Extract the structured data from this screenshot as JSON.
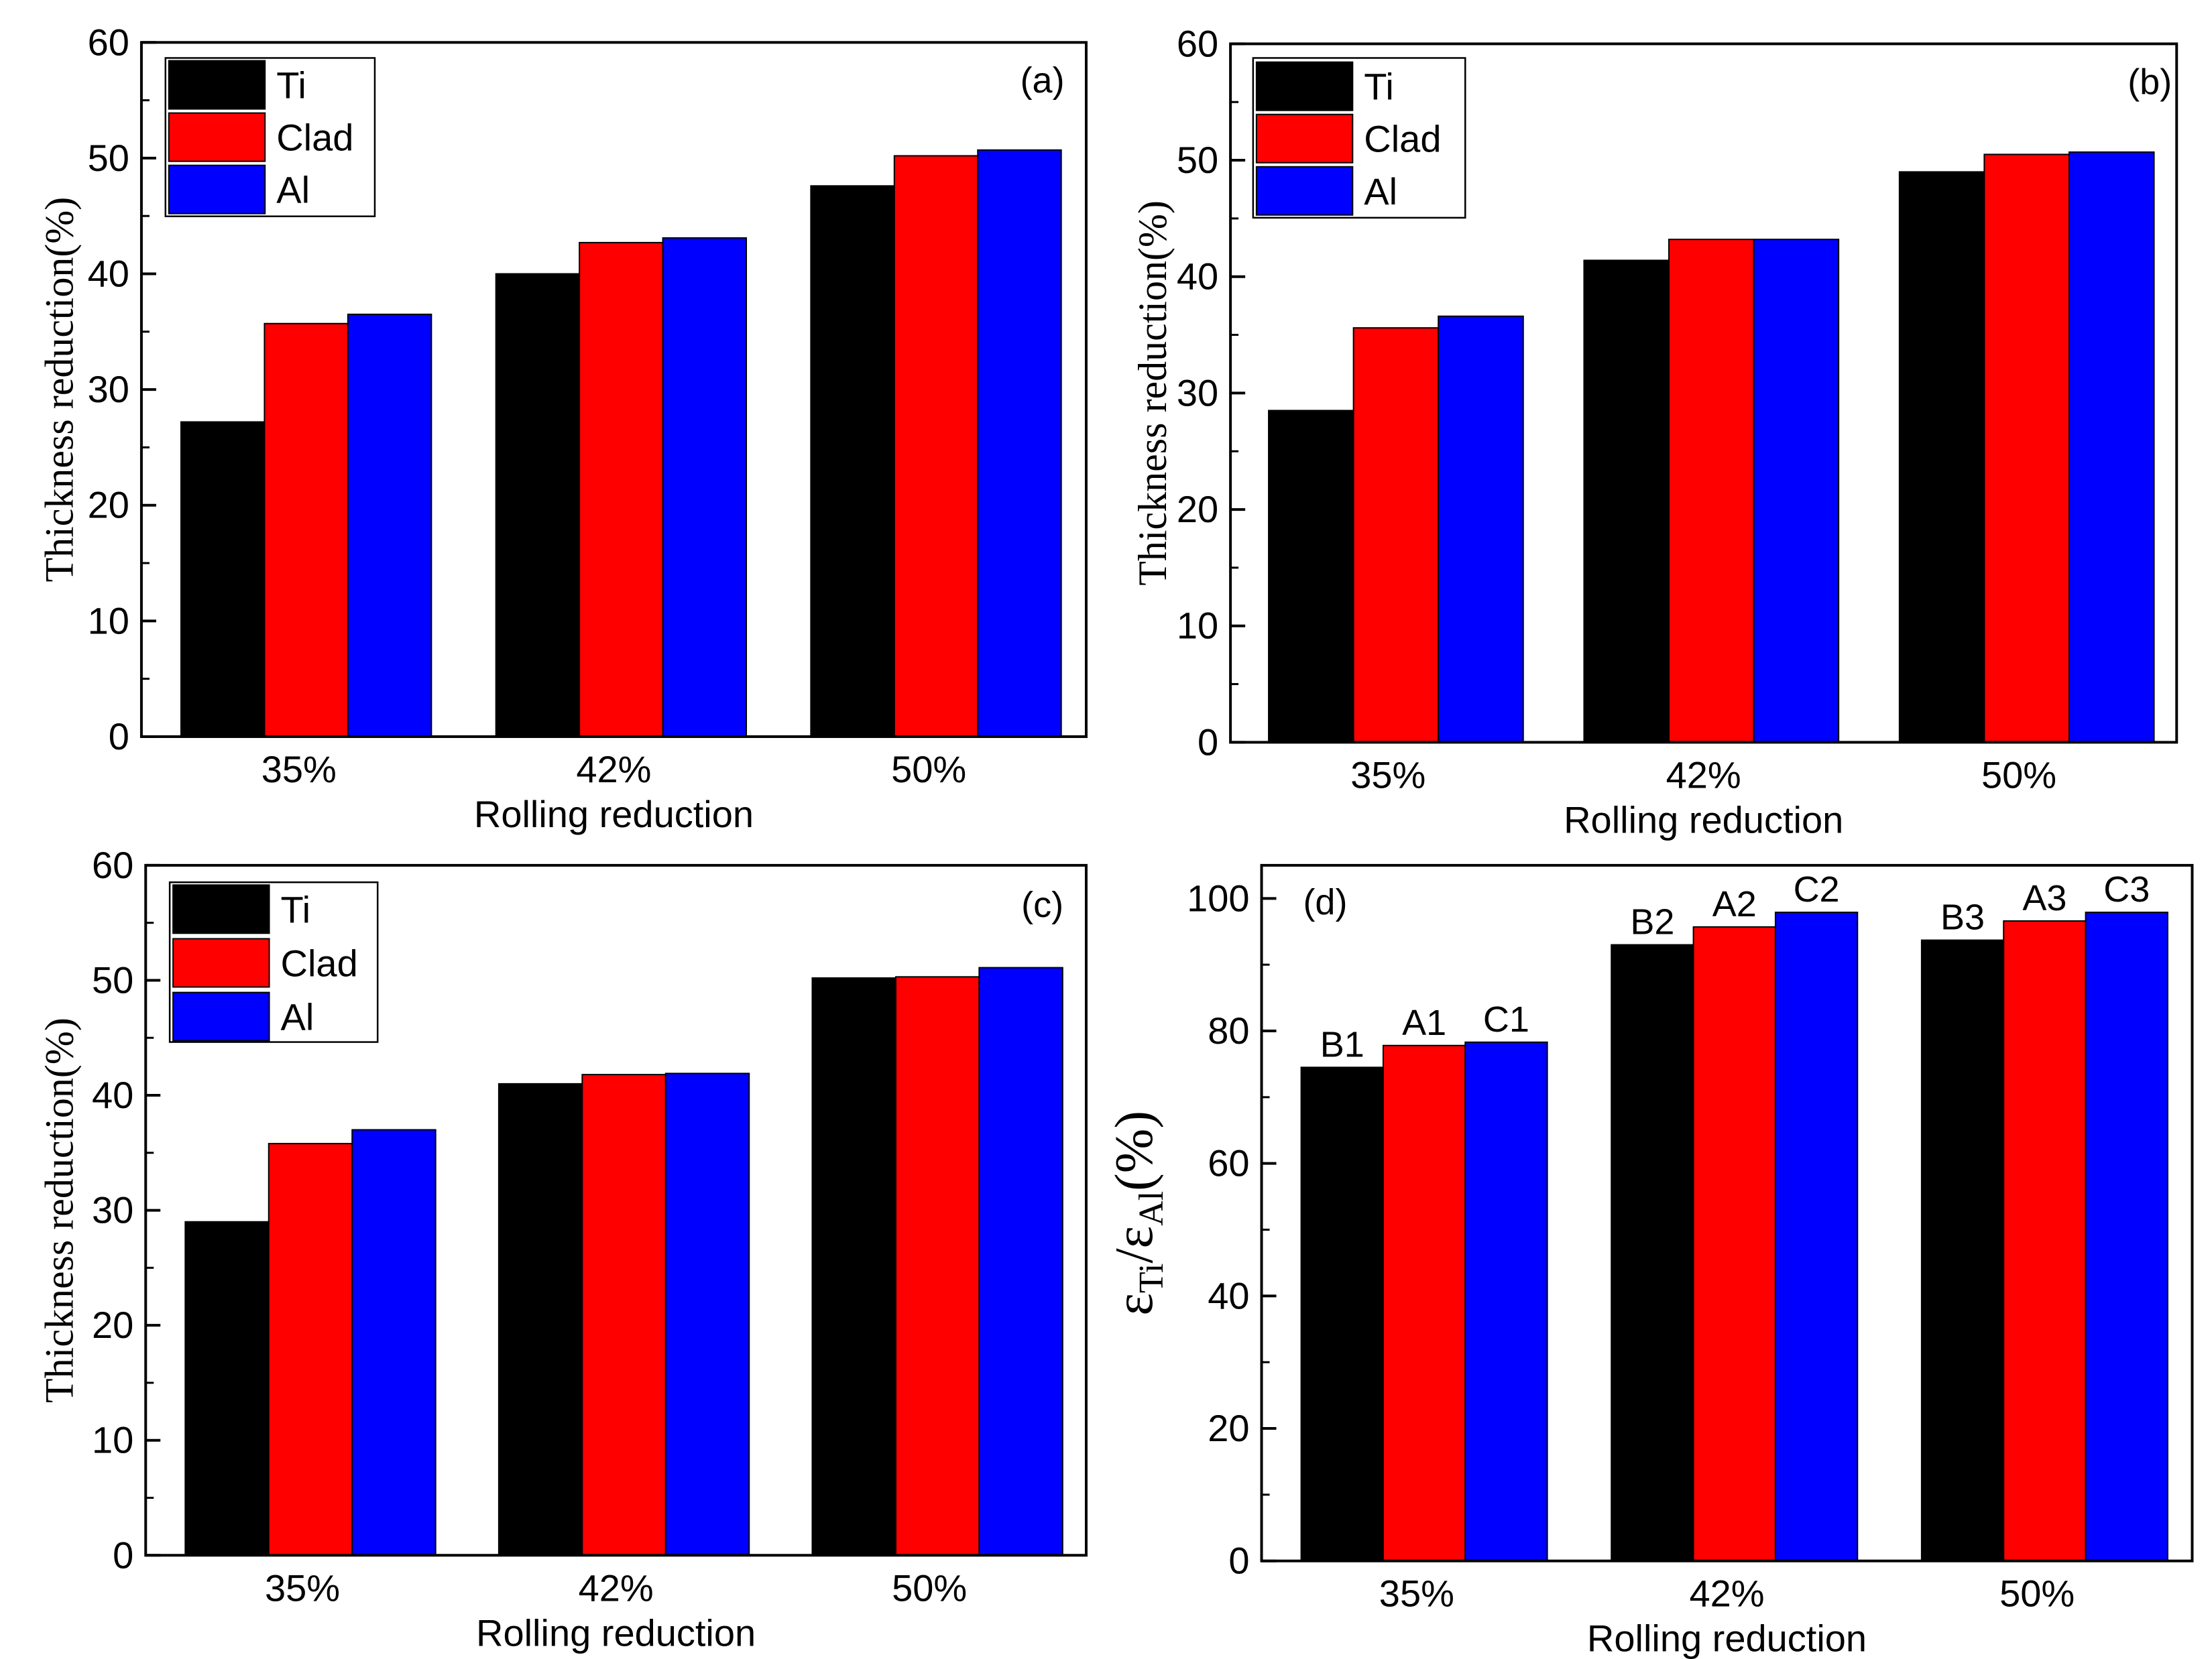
{
  "colors": {
    "ti": "#000000",
    "clad": "#ff0000",
    "al": "#0000ff",
    "axis": "#000000"
  },
  "chart_data": [
    {
      "type": "bar",
      "panel": "(a)",
      "categories": [
        "35%",
        "42%",
        "50%"
      ],
      "series": [
        {
          "name": "Ti",
          "values": [
            27.2,
            40.0,
            47.6
          ]
        },
        {
          "name": "Clad",
          "values": [
            35.7,
            42.7,
            50.2
          ]
        },
        {
          "name": "Al",
          "values": [
            36.5,
            43.1,
            50.7
          ]
        }
      ],
      "xlabel": "Rolling reduction",
      "ylabel": "Thickness reduction(%)",
      "ylim": [
        0,
        60
      ],
      "yticks": [
        "0",
        "10",
        "20",
        "30",
        "40",
        "50",
        "60"
      ],
      "legend": [
        "Ti",
        "Clad",
        "Al"
      ],
      "legend_position": "top-left"
    },
    {
      "type": "bar",
      "panel": "(b)",
      "categories": [
        "35%",
        "42%",
        "50%"
      ],
      "series": [
        {
          "name": "Ti",
          "values": [
            28.5,
            41.4,
            49.0
          ]
        },
        {
          "name": "Clad",
          "values": [
            35.6,
            43.2,
            50.5
          ]
        },
        {
          "name": "Al",
          "values": [
            36.6,
            43.2,
            50.7
          ]
        }
      ],
      "xlabel": "Rolling reduction",
      "ylabel": "Thickness reduction(%)",
      "ylim": [
        0,
        60
      ],
      "yticks": [
        "0",
        "10",
        "20",
        "30",
        "40",
        "50",
        "60"
      ],
      "legend": [
        "Ti",
        "Clad",
        "Al"
      ],
      "legend_position": "top-left"
    },
    {
      "type": "bar",
      "panel": "(c)",
      "categories": [
        "35%",
        "42%",
        "50%"
      ],
      "series": [
        {
          "name": "Ti",
          "values": [
            29.0,
            41.0,
            50.2
          ]
        },
        {
          "name": "Clad",
          "values": [
            35.8,
            41.8,
            50.3
          ]
        },
        {
          "name": "Al",
          "values": [
            37.0,
            41.9,
            51.1
          ]
        }
      ],
      "xlabel": "Rolling reduction",
      "ylabel": "Thickness reduction(%)",
      "ylim": [
        0,
        60
      ],
      "yticks": [
        "0",
        "10",
        "20",
        "30",
        "40",
        "50",
        "60"
      ],
      "legend": [
        "Ti",
        "Clad",
        "Al"
      ],
      "legend_position": "top-left"
    },
    {
      "type": "bar",
      "panel": "(d)",
      "categories": [
        "35%",
        "42%",
        "50%"
      ],
      "series": [
        {
          "name": "Ti",
          "values": [
            74.5,
            93.0,
            93.7
          ]
        },
        {
          "name": "Clad",
          "values": [
            77.8,
            95.7,
            96.6
          ]
        },
        {
          "name": "Al",
          "values": [
            78.3,
            97.9,
            97.9
          ]
        }
      ],
      "data_labels": [
        [
          "B1",
          "B2",
          "B3"
        ],
        [
          "A1",
          "A2",
          "A3"
        ],
        [
          "C1",
          "C2",
          "C3"
        ]
      ],
      "xlabel": "Rolling reduction",
      "ylabel": "ε_Ti/ε_Al(%)",
      "ylabel_parts": {
        "eps1": "ε",
        "sub1": "Ti",
        "slash": "/",
        "eps2": "ε",
        "sub2": "Al",
        "tail": "(%)"
      },
      "ylim": [
        0,
        105
      ],
      "yticks": [
        "0",
        "20",
        "40",
        "60",
        "80",
        "100"
      ],
      "ytick_values": [
        0,
        20,
        40,
        60,
        80,
        100
      ]
    }
  ]
}
